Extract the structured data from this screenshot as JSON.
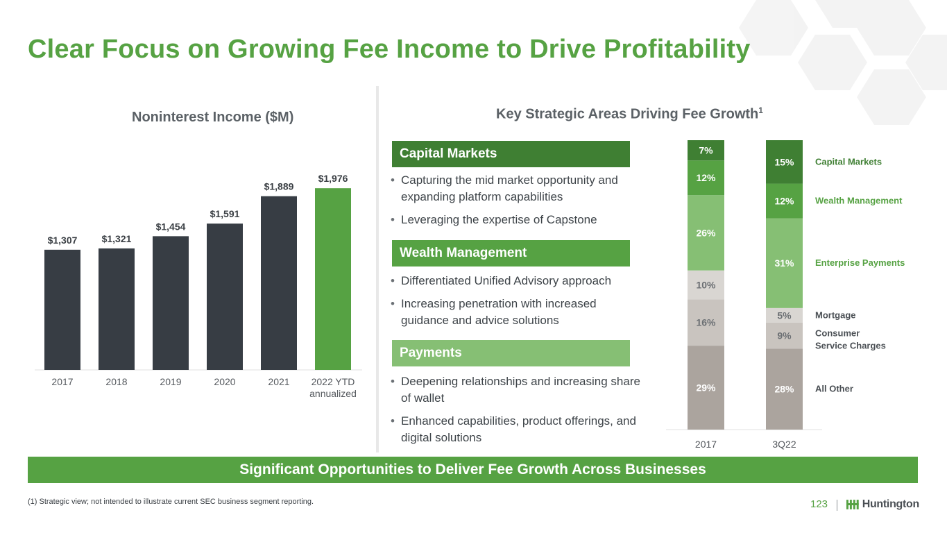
{
  "title": "Clear Focus on Growing Fee Income to Drive Profitability",
  "colors": {
    "brand_green": "#56a243",
    "dark_bar": "#373d44",
    "capital_markets": "#3f7f33",
    "wealth_management": "#56a243",
    "payments_light": "#86bf74",
    "mortgage": "#d9d6d2",
    "consumer_service_charges": "#c9c4bf",
    "all_other": "#aba49e"
  },
  "left_panel": {
    "title": "Noninterest Income ($M)"
  },
  "right_panel": {
    "title": "Key Strategic Areas Driving Fee Growth",
    "title_sup": "1"
  },
  "sections": [
    {
      "heading": "Capital Markets",
      "bullets": [
        "Capturing the mid market opportunity and expanding platform capabilities",
        "Leveraging the expertise of Capstone"
      ]
    },
    {
      "heading": "Wealth Management",
      "bullets": [
        "Differentiated Unified Advisory approach",
        "Increasing penetration with increased guidance and advice solutions"
      ]
    },
    {
      "heading": "Payments",
      "bullets": [
        "Deepening relationships and increasing share of wallet",
        "Enhanced capabilities, product offerings, and digital solutions"
      ]
    }
  ],
  "banner": "Significant Opportunities to Deliver Fee Growth Across Businesses",
  "footnote": "(1) Strategic view; not intended to illustrate current SEC business segment reporting.",
  "page_number": "123",
  "logo_text": "Huntington",
  "chart_data": [
    {
      "type": "bar",
      "title": "Noninterest Income ($M)",
      "categories": [
        "2017",
        "2018",
        "2019",
        "2020",
        "2021",
        "2022 YTD annualized"
      ],
      "category_lines": [
        [
          "2017"
        ],
        [
          "2018"
        ],
        [
          "2019"
        ],
        [
          "2020"
        ],
        [
          "2021"
        ],
        [
          "2022 YTD",
          "annualized"
        ]
      ],
      "values": [
        1307,
        1321,
        1454,
        1591,
        1889,
        1976
      ],
      "value_labels": [
        "$1,307",
        "$1,321",
        "$1,454",
        "$1,591",
        "$1,889",
        "$1,976"
      ],
      "highlight_index": 5,
      "ylim": [
        0,
        2000
      ],
      "grid": false
    },
    {
      "type": "bar",
      "stacked": "100%",
      "categories": [
        "2017",
        "3Q22"
      ],
      "series": [
        {
          "name": "All Other",
          "values": [
            29,
            28
          ]
        },
        {
          "name": "Consumer Service Charges",
          "values": [
            16,
            9
          ]
        },
        {
          "name": "Mortgage",
          "values": [
            10,
            5
          ]
        },
        {
          "name": "Enterprise Payments",
          "values": [
            26,
            31
          ]
        },
        {
          "name": "Wealth Management",
          "values": [
            12,
            12
          ]
        },
        {
          "name": "Capital Markets",
          "values": [
            7,
            15
          ]
        }
      ],
      "legend_lines": {
        "All Other": [
          "All Other"
        ],
        "Consumer Service Charges": [
          "Consumer",
          "Service Charges"
        ],
        "Mortgage": [
          "Mortgage"
        ],
        "Enterprise Payments": [
          "Enterprise Payments"
        ],
        "Wealth Management": [
          "Wealth Management"
        ],
        "Capital Markets": [
          "Capital Markets"
        ]
      },
      "legend": "right",
      "grid": false
    }
  ]
}
